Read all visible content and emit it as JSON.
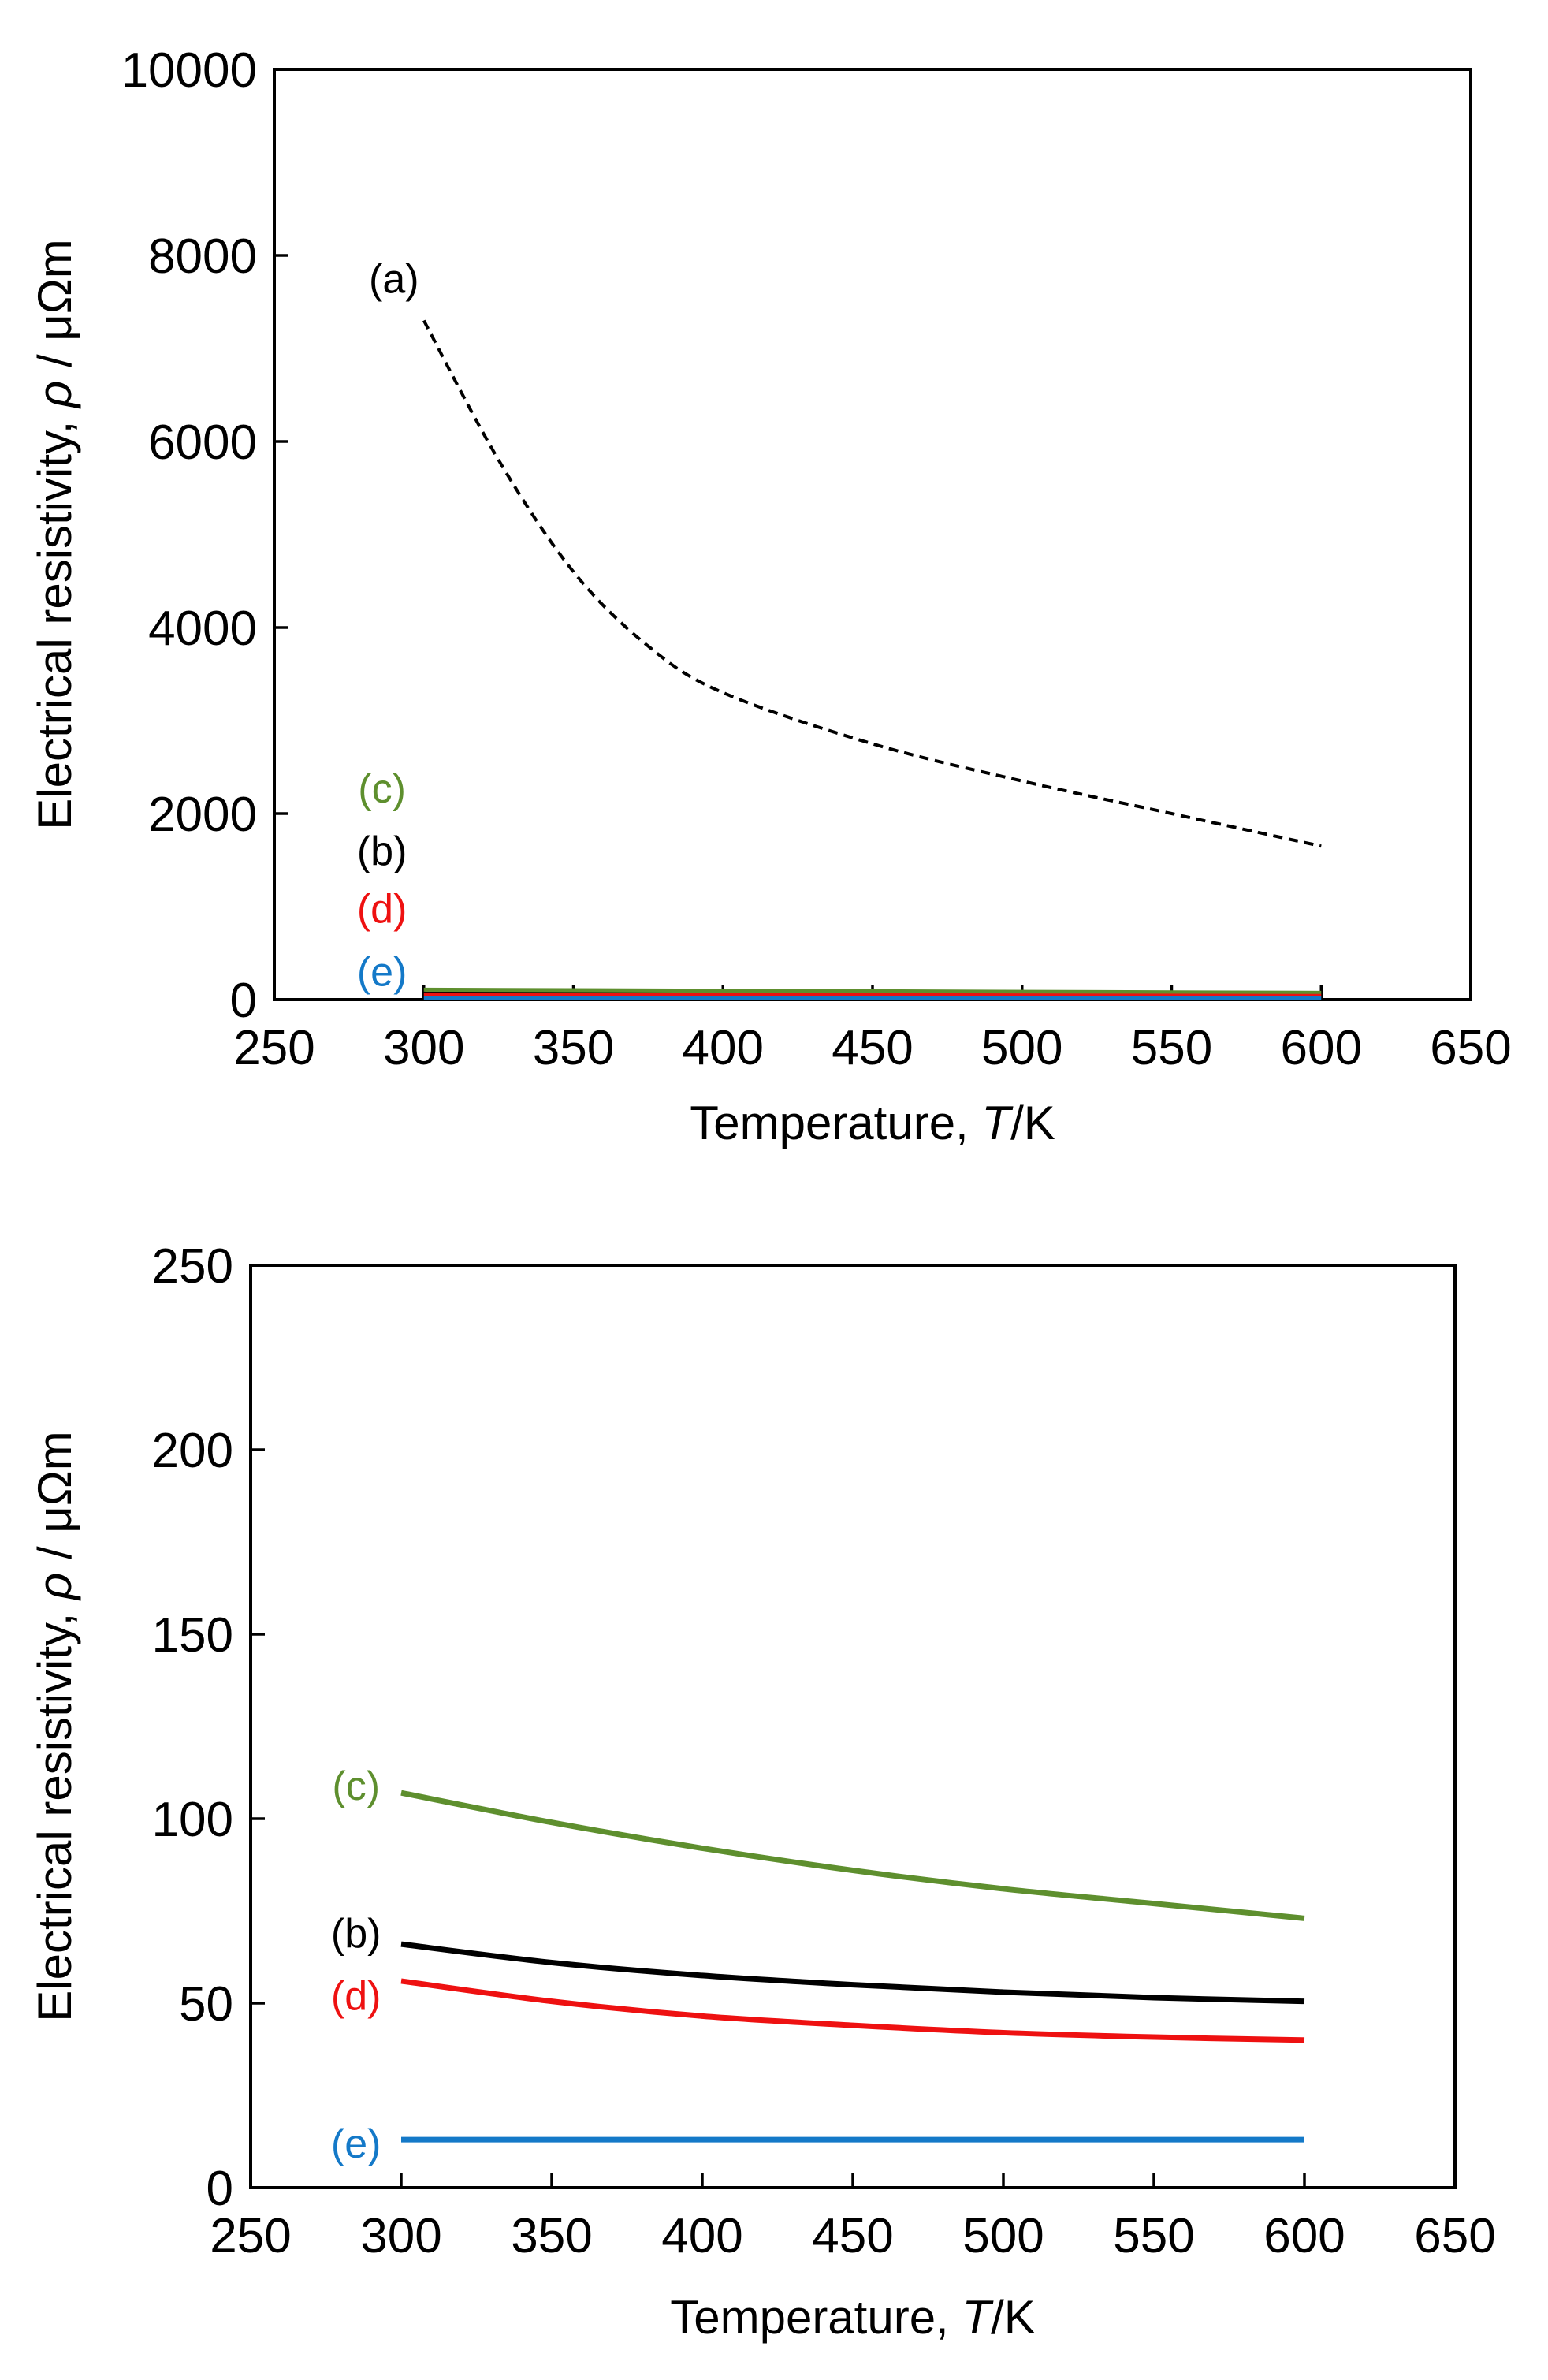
{
  "chart_data": [
    {
      "type": "line",
      "title": "",
      "xlabel": "Temperature, ",
      "xlabel_var": "T",
      "xlabel_unit": "/K",
      "ylabel": "Electrical resistivity, ",
      "ylabel_var": "ρ",
      "ylabel_unit": " / μΩm",
      "xlim": [
        250,
        650
      ],
      "ylim": [
        0,
        10000
      ],
      "xticks": [
        "250",
        "300",
        "350",
        "400",
        "450",
        "500",
        "550",
        "600",
        "650"
      ],
      "yticks": [
        "0",
        "2000",
        "4000",
        "6000",
        "8000",
        "10000"
      ],
      "series": [
        {
          "name": "(a)",
          "color": "#000000",
          "style": "dashed",
          "width": 4,
          "x": [
            300,
            325,
            350,
            375,
            400,
            450,
            500,
            550,
            600
          ],
          "y": [
            7300,
            5800,
            4600,
            3800,
            3300,
            2750,
            2350,
            2000,
            1650
          ]
        },
        {
          "name": "(b)",
          "color": "#000000",
          "style": "solid",
          "width": 5,
          "x": [
            300,
            600
          ],
          "y": [
            66,
            50
          ]
        },
        {
          "name": "(c)",
          "color": "#5e8f2e",
          "style": "solid",
          "width": 5,
          "x": [
            300,
            600
          ],
          "y": [
            107,
            73
          ]
        },
        {
          "name": "(d)",
          "color": "#ee1111",
          "style": "solid",
          "width": 5,
          "x": [
            300,
            600
          ],
          "y": [
            56,
            40
          ]
        },
        {
          "name": "(e)",
          "color": "#1479c8",
          "style": "solid",
          "width": 5,
          "x": [
            300,
            600
          ],
          "y": [
            13,
            13
          ]
        }
      ],
      "labels": [
        {
          "text": "(a)",
          "color": "#000000",
          "x": 290,
          "y": 7750
        },
        {
          "text": "(c)",
          "color": "#5e8f2e",
          "x": 286,
          "y": 2270
        },
        {
          "text": "(b)",
          "color": "#000000",
          "x": 286,
          "y": 1600
        },
        {
          "text": "(d)",
          "color": "#ee1111",
          "x": 286,
          "y": 980
        },
        {
          "text": "(e)",
          "color": "#1479c8",
          "x": 286,
          "y": 300
        }
      ]
    },
    {
      "type": "line",
      "title": "",
      "xlabel": "Temperature, ",
      "xlabel_var": "T",
      "xlabel_unit": "/K",
      "ylabel": "Electrical resistivity, ",
      "ylabel_var": "ρ",
      "ylabel_unit": " / μΩm",
      "xlim": [
        250,
        650
      ],
      "ylim": [
        0,
        250
      ],
      "xticks": [
        "250",
        "300",
        "350",
        "400",
        "450",
        "500",
        "550",
        "600",
        "650"
      ],
      "yticks": [
        "0",
        "50",
        "100",
        "150",
        "200",
        "250"
      ],
      "series": [
        {
          "name": "(c)",
          "color": "#5e8f2e",
          "style": "solid",
          "width": 7,
          "x": [
            300,
            350,
            400,
            450,
            500,
            550,
            600
          ],
          "y": [
            107,
            99,
            92,
            86,
            81,
            77,
            73
          ]
        },
        {
          "name": "(b)",
          "color": "#000000",
          "style": "solid",
          "width": 7,
          "x": [
            300,
            350,
            400,
            450,
            500,
            550,
            600
          ],
          "y": [
            66,
            61,
            57.5,
            55,
            53,
            51.5,
            50.5
          ]
        },
        {
          "name": "(d)",
          "color": "#ee1111",
          "style": "solid",
          "width": 7,
          "x": [
            300,
            350,
            400,
            450,
            500,
            550,
            600
          ],
          "y": [
            56,
            50.5,
            46.5,
            44,
            42,
            40.8,
            40
          ]
        },
        {
          "name": "(e)",
          "color": "#1479c8",
          "style": "solid",
          "width": 7,
          "x": [
            300,
            600
          ],
          "y": [
            13,
            13
          ]
        }
      ],
      "labels": [
        {
          "text": "(c)",
          "color": "#5e8f2e",
          "x": 285,
          "y": 109
        },
        {
          "text": "(b)",
          "color": "#000000",
          "x": 285,
          "y": 69
        },
        {
          "text": "(d)",
          "color": "#ee1111",
          "x": 285,
          "y": 52
        },
        {
          "text": "(e)",
          "color": "#1479c8",
          "x": 285,
          "y": 12
        }
      ]
    }
  ]
}
